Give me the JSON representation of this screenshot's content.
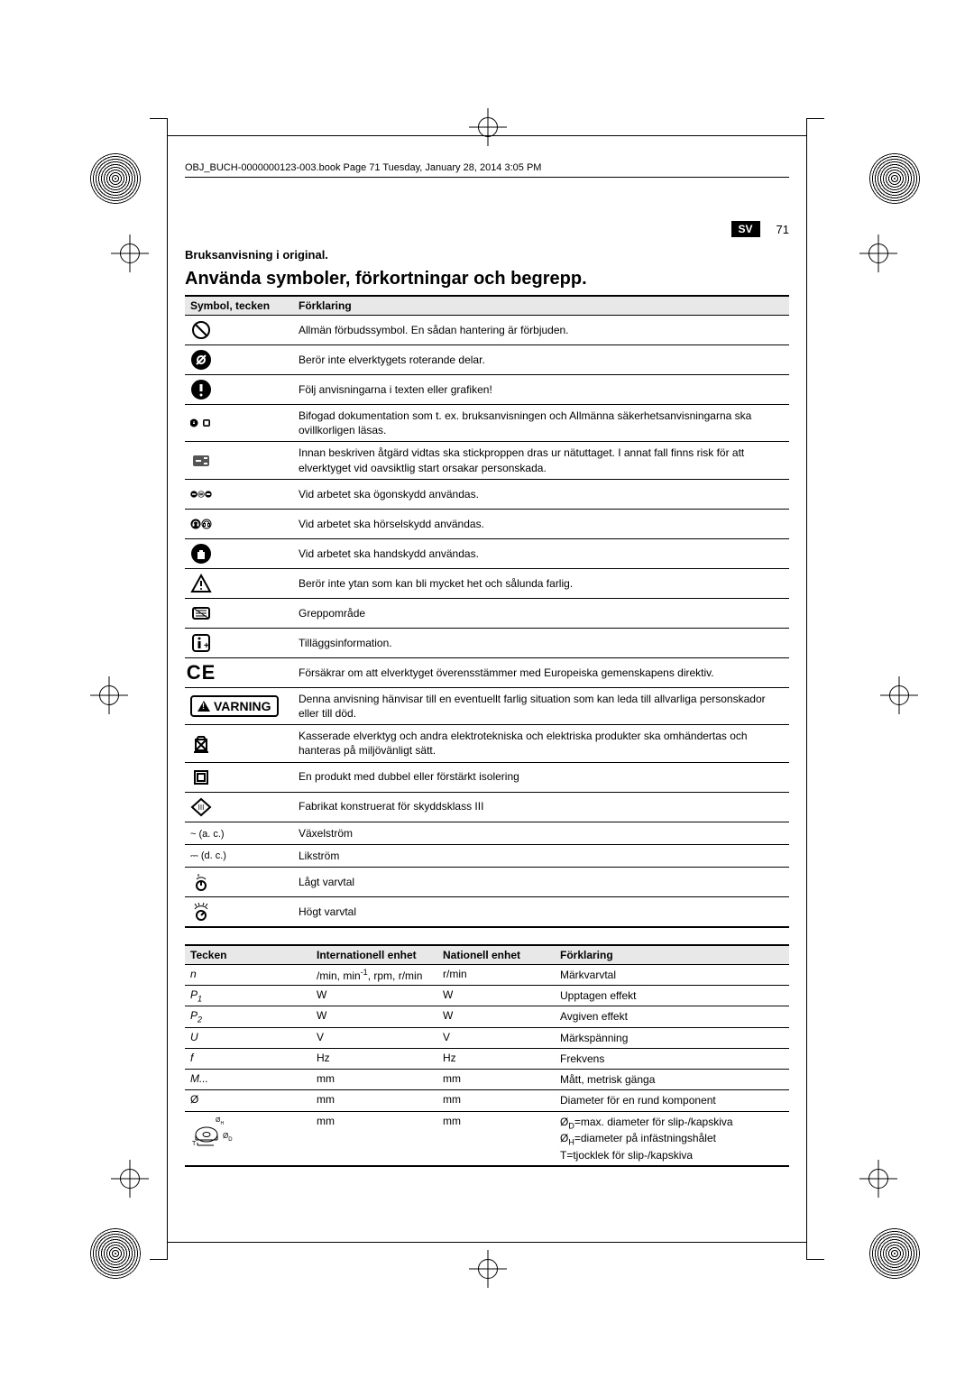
{
  "printer_marks": {
    "positions": "four corners and mid-edges"
  },
  "running_head": "OBJ_BUCH-0000000123-003.book  Page 71  Tuesday, January 28, 2014  3:05 PM",
  "header": {
    "lang_code": "SV",
    "page_number": "71"
  },
  "subhead": "Bruksanvisning i original.",
  "title": "Använda symboler, förkortningar och begrepp.",
  "symbols_table": {
    "headers": [
      "Symbol, tecken",
      "Förklaring"
    ],
    "rows": [
      {
        "icon": "prohibit",
        "text": "Allmän förbudssymbol. En sådan hantering är förbjuden."
      },
      {
        "icon": "no-touch-rot",
        "text": "Berör inte elverktygets roterande delar."
      },
      {
        "icon": "info-exclaim",
        "text": "Följ anvisningarna i texten eller grafiken!"
      },
      {
        "icon": "read-docs",
        "text": "Bifogad dokumentation som t. ex. bruksanvisningen och Allmänna säkerhetsanvisningarna ska ovillkorligen läsas."
      },
      {
        "icon": "unplug",
        "text": "Innan beskriven åtgärd vidtas ska stickproppen dras ur nätuttaget. I annat fall finns risk för att elverktyget vid oavsiktlig start orsakar personskada."
      },
      {
        "icon": "eye-protect",
        "text": "Vid arbetet ska ögonskydd användas."
      },
      {
        "icon": "ear-protect",
        "text": "Vid arbetet ska hörselskydd användas."
      },
      {
        "icon": "hand-protect",
        "text": "Vid arbetet ska handskydd användas."
      },
      {
        "icon": "hot-surface",
        "text": "Berör inte ytan som kan bli mycket het och sålunda farlig."
      },
      {
        "icon": "grip-area",
        "text": "Greppområde"
      },
      {
        "icon": "info-plus",
        "text": "Tilläggsinformation."
      },
      {
        "icon": "ce-mark",
        "text": "Försäkrar om att elverktyget överensstämmer med Europeiska gemenskapens direktiv."
      },
      {
        "icon": "warning-box",
        "warn_label": "VARNING",
        "text": "Denna anvisning hänvisar till en eventuellt farlig situation som kan leda till allvarliga personskador eller till död."
      },
      {
        "icon": "weee",
        "text": "Kasserade elverktyg och andra elektrotekniska och elektriska produkter ska omhändertas och hanteras på miljövänligt sätt."
      },
      {
        "icon": "double-insul",
        "text": "En produkt med dubbel eller förstärkt isolering"
      },
      {
        "icon": "class-iii",
        "text": "Fabrikat konstruerat för skyddsklass III"
      },
      {
        "icon": "ac",
        "sym_text": "~ (a. c.)",
        "text": "Växelström"
      },
      {
        "icon": "dc",
        "sym_text": "⎓ (d. c.)",
        "text": "Likström"
      },
      {
        "icon": "low-speed",
        "text": "Lågt varvtal"
      },
      {
        "icon": "high-speed",
        "text": "Högt varvtal"
      }
    ]
  },
  "units_table": {
    "headers": [
      "Tecken",
      "Internationell enhet",
      "Nationell enhet",
      "Förklaring"
    ],
    "rows": [
      {
        "sign": "n",
        "sign_style": "ital",
        "intl_html": "/min, min<sup>-1</sup>, rpm, r/min",
        "nat": "r/min",
        "desc": "Märkvarvtal"
      },
      {
        "sign_html": "P<sub>1</sub>",
        "sign_style": "ital",
        "intl": "W",
        "nat": "W",
        "desc": "Upptagen effekt"
      },
      {
        "sign_html": "P<sub>2</sub>",
        "sign_style": "ital",
        "intl": "W",
        "nat": "W",
        "desc": "Avgiven effekt"
      },
      {
        "sign": "U",
        "sign_style": "ital",
        "intl": "V",
        "nat": "V",
        "desc": "Märkspänning"
      },
      {
        "sign": "f",
        "sign_style": "ital",
        "intl": "Hz",
        "nat": "Hz",
        "desc": "Frekvens"
      },
      {
        "sign": "M...",
        "sign_style": "ital",
        "intl": "mm",
        "nat": "mm",
        "desc": "Mått, metrisk gänga"
      },
      {
        "sign": "Ø",
        "intl": "mm",
        "nat": "mm",
        "desc": "Diameter för en rund komponent"
      },
      {
        "sign": "disc-diagram",
        "intl": "mm",
        "nat": "mm",
        "desc_html": "Ø<sub>D</sub>=max. diameter för slip-/kapskiva<br>Ø<sub>H</sub>=diameter på infästningshålet<br>T=tjocklek för slip-/kapskiva"
      }
    ]
  },
  "colors": {
    "text": "#000000",
    "bg": "#ffffff",
    "header_bg": "#e8e8e8"
  }
}
